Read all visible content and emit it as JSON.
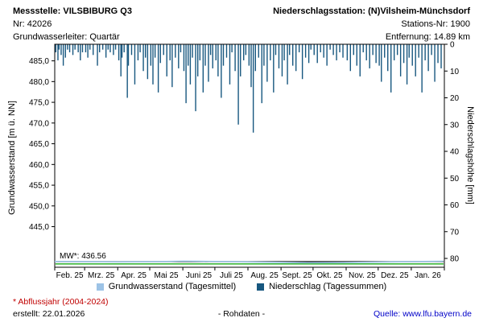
{
  "header": {
    "left": {
      "station_title": "Messstelle: VILSBIBURG Q3",
      "station_number": "Nr: 42026",
      "aquifer": "Grundwasserleiter: Quartär"
    },
    "right": {
      "precip_station_title": "Niederschlagsstation: (N)Vilsheim-Münchsdorf",
      "precip_station_number": "Stations-Nr: 1900",
      "distance": "Entfernung: 14.89 km"
    }
  },
  "chart_data": {
    "type": "combo",
    "title": "",
    "left_axis": {
      "label": "Grundwasserstand [m ü. NN]",
      "range": [
        435.2,
        489.0
      ],
      "ticks": [
        {
          "label": "485,0",
          "value": 485
        },
        {
          "label": "480,0",
          "value": 480
        },
        {
          "label": "475,0",
          "value": 475
        },
        {
          "label": "470,0",
          "value": 470
        },
        {
          "label": "465,0",
          "value": 465
        },
        {
          "label": "460,0",
          "value": 460
        },
        {
          "label": "455,0",
          "value": 455
        },
        {
          "label": "450,0",
          "value": 450
        },
        {
          "label": "445,0",
          "value": 445
        }
      ]
    },
    "right_axis": {
      "label": "Niederschlagshöhe [mm]",
      "range": [
        0,
        83.3
      ],
      "inverted": true,
      "ticks": [
        0,
        10,
        20,
        30,
        40,
        50,
        60,
        70,
        80
      ]
    },
    "x_axis": {
      "labels": [
        "Feb. 25",
        "Mrz. 25",
        "Apr. 25",
        "Mai 25",
        "Juni 25",
        "Juli 25",
        "Aug. 25",
        "Sept. 25",
        "Okt. 25",
        "Nov. 25",
        "Dez. 25",
        "Jan. 26"
      ],
      "month_starts": [
        0,
        28,
        59,
        89,
        120,
        150,
        181,
        212,
        242,
        273,
        303,
        334
      ],
      "total_days": 365
    },
    "series": [
      {
        "name": "Grundwasserstand (Tagesmittel)",
        "type": "line",
        "axis": "left",
        "color": "#9dc3e6",
        "points": [
          [
            0,
            436.6
          ],
          [
            15,
            436.58
          ],
          [
            30,
            436.55
          ],
          [
            45,
            436.52
          ],
          [
            60,
            436.5
          ],
          [
            75,
            436.52
          ],
          [
            90,
            436.55
          ],
          [
            105,
            436.6
          ],
          [
            120,
            436.68
          ],
          [
            135,
            436.65
          ],
          [
            150,
            436.6
          ],
          [
            165,
            436.55
          ],
          [
            180,
            436.5
          ],
          [
            195,
            436.45
          ],
          [
            210,
            436.4
          ],
          [
            225,
            436.35
          ],
          [
            240,
            436.3
          ],
          [
            255,
            436.32
          ],
          [
            270,
            436.35
          ],
          [
            285,
            436.4
          ],
          [
            300,
            436.45
          ],
          [
            315,
            436.5
          ],
          [
            330,
            436.55
          ],
          [
            345,
            436.6
          ],
          [
            364,
            436.65
          ]
        ]
      },
      {
        "name": "Niederschlag (Tagessummen)",
        "type": "bar",
        "axis": "right",
        "color": "#17577f",
        "points": [
          [
            1,
            3
          ],
          [
            3,
            6
          ],
          [
            4,
            2
          ],
          [
            6,
            4
          ],
          [
            8,
            8
          ],
          [
            10,
            5
          ],
          [
            12,
            2
          ],
          [
            14,
            3
          ],
          [
            17,
            4
          ],
          [
            19,
            2
          ],
          [
            22,
            3
          ],
          [
            24,
            6
          ],
          [
            26,
            3
          ],
          [
            29,
            3
          ],
          [
            31,
            5
          ],
          [
            33,
            2
          ],
          [
            36,
            4
          ],
          [
            40,
            8
          ],
          [
            42,
            3
          ],
          [
            45,
            2
          ],
          [
            48,
            5
          ],
          [
            50,
            2
          ],
          [
            52,
            3
          ],
          [
            55,
            4
          ],
          [
            57,
            2
          ],
          [
            60,
            6
          ],
          [
            62,
            12
          ],
          [
            63,
            5
          ],
          [
            65,
            3
          ],
          [
            68,
            20
          ],
          [
            69,
            8
          ],
          [
            72,
            4
          ],
          [
            75,
            15
          ],
          [
            78,
            6
          ],
          [
            80,
            3
          ],
          [
            83,
            10
          ],
          [
            85,
            5
          ],
          [
            87,
            13
          ],
          [
            90,
            8
          ],
          [
            92,
            15
          ],
          [
            94,
            5
          ],
          [
            97,
            18
          ],
          [
            99,
            7
          ],
          [
            102,
            4
          ],
          [
            105,
            12
          ],
          [
            108,
            6
          ],
          [
            110,
            16
          ],
          [
            113,
            5
          ],
          [
            116,
            9
          ],
          [
            118,
            3
          ],
          [
            121,
            10
          ],
          [
            123,
            22
          ],
          [
            125,
            8
          ],
          [
            127,
            15
          ],
          [
            129,
            5
          ],
          [
            132,
            25
          ],
          [
            134,
            12
          ],
          [
            136,
            6
          ],
          [
            139,
            18
          ],
          [
            141,
            8
          ],
          [
            144,
            14
          ],
          [
            146,
            4
          ],
          [
            148,
            9
          ],
          [
            151,
            6
          ],
          [
            153,
            12
          ],
          [
            156,
            20
          ],
          [
            158,
            8
          ],
          [
            161,
            5
          ],
          [
            164,
            15
          ],
          [
            166,
            3
          ],
          [
            169,
            10
          ],
          [
            172,
            30
          ],
          [
            174,
            12
          ],
          [
            177,
            6
          ],
          [
            179,
            4
          ],
          [
            182,
            8
          ],
          [
            184,
            16
          ],
          [
            186,
            33
          ],
          [
            188,
            10
          ],
          [
            191,
            5
          ],
          [
            194,
            22
          ],
          [
            196,
            8
          ],
          [
            199,
            14
          ],
          [
            202,
            6
          ],
          [
            205,
            18
          ],
          [
            207,
            4
          ],
          [
            210,
            9
          ],
          [
            213,
            12
          ],
          [
            215,
            6
          ],
          [
            218,
            15
          ],
          [
            220,
            4
          ],
          [
            223,
            8
          ],
          [
            226,
            10
          ],
          [
            229,
            3
          ],
          [
            232,
            13
          ],
          [
            235,
            5
          ],
          [
            238,
            7
          ],
          [
            240,
            2
          ],
          [
            243,
            4
          ],
          [
            246,
            7
          ],
          [
            249,
            3
          ],
          [
            252,
            5
          ],
          [
            255,
            8
          ],
          [
            258,
            2
          ],
          [
            261,
            4
          ],
          [
            264,
            6
          ],
          [
            267,
            3
          ],
          [
            270,
            5
          ],
          [
            274,
            6
          ],
          [
            277,
            10
          ],
          [
            280,
            4
          ],
          [
            283,
            8
          ],
          [
            286,
            12
          ],
          [
            289,
            3
          ],
          [
            292,
            6
          ],
          [
            295,
            9
          ],
          [
            298,
            4
          ],
          [
            301,
            7
          ],
          [
            304,
            8
          ],
          [
            306,
            14
          ],
          [
            309,
            5
          ],
          [
            312,
            10
          ],
          [
            315,
            18
          ],
          [
            318,
            6
          ],
          [
            321,
            4
          ],
          [
            324,
            12
          ],
          [
            327,
            7
          ],
          [
            330,
            15
          ],
          [
            332,
            5
          ],
          [
            335,
            8
          ],
          [
            338,
            12
          ],
          [
            341,
            5
          ],
          [
            344,
            18
          ],
          [
            347,
            6
          ],
          [
            350,
            10
          ],
          [
            353,
            4
          ],
          [
            356,
            14
          ],
          [
            359,
            7
          ],
          [
            362,
            9
          ]
        ]
      }
    ],
    "reference_lines": [
      {
        "label": "MW*: 436.56",
        "value": 436.56,
        "color": "#000000"
      },
      {
        "label": "",
        "value": 436.0,
        "color": "#00a000"
      }
    ]
  },
  "footer": {
    "note": "* Abflussjahr (2004-2024)",
    "created": "erstellt:  22.01.2026",
    "center": "- Rohdaten -",
    "source": "Quelle: www.lfu.bayern.de"
  }
}
